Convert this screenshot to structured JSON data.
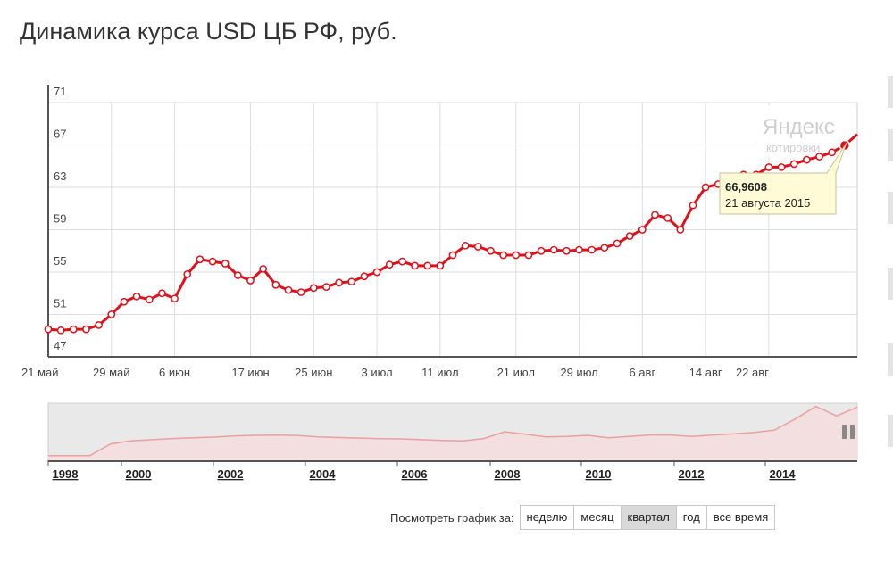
{
  "title": "Динамика курса USD ЦБ РФ, руб.",
  "chart_data": {
    "type": "line",
    "ylim": [
      47,
      71
    ],
    "y_ticks": [
      "71",
      "67",
      "63",
      "59",
      "55",
      "51",
      "47"
    ],
    "x_labels": [
      "21 май",
      "29 май",
      "6 июн",
      "17 июн",
      "25 июн",
      "3 июл",
      "11 июл",
      "21 июл",
      "29 июл",
      "6 авг",
      "14 авг",
      "22 авг"
    ],
    "x_label_index": [
      0,
      5,
      10,
      16,
      21,
      26,
      31,
      37,
      42,
      47,
      52,
      57
    ],
    "values": [
      49.6,
      49.5,
      49.6,
      49.6,
      50.0,
      51.0,
      52.2,
      52.7,
      52.4,
      53.0,
      52.5,
      54.8,
      56.2,
      56.0,
      55.8,
      54.7,
      54.2,
      55.3,
      53.8,
      53.3,
      53.1,
      53.5,
      53.6,
      54.0,
      54.1,
      54.6,
      55.0,
      55.7,
      56.0,
      55.6,
      55.6,
      55.6,
      56.6,
      57.5,
      57.4,
      57.0,
      56.6,
      56.6,
      56.6,
      57.0,
      57.1,
      57.0,
      57.1,
      57.1,
      57.3,
      57.7,
      58.4,
      59.0,
      60.4,
      60.1,
      59.0,
      61.3,
      63.0,
      63.3,
      63.3,
      64.2,
      64.2,
      64.9,
      64.9,
      65.2,
      65.6,
      65.9,
      66.3,
      66.96,
      68.0
    ],
    "grid": true,
    "tooltip": {
      "value": "66,9608",
      "date": "21 августа 2015"
    },
    "watermark": {
      "line1": "Яндекс",
      "line2": "котировки"
    }
  },
  "overview": {
    "years": [
      "1998",
      "2000",
      "2002",
      "2004",
      "2006",
      "2008",
      "2010",
      "2012",
      "2014"
    ],
    "series": [
      5.9,
      5.9,
      6.0,
      20.6,
      24.6,
      26.0,
      27.5,
      28.4,
      29.3,
      30.8,
      31.5,
      31.8,
      31.4,
      29.5,
      28.7,
      28.0,
      27.2,
      27.0,
      26.0,
      25.0,
      24.5,
      27.5,
      36.0,
      33.0,
      29.6,
      30.0,
      31.5,
      28.5,
      30.0,
      32.0,
      32.0,
      30.0,
      31.8,
      33.3,
      35.0,
      38.0,
      52.0,
      68.0,
      56.0,
      67.0
    ]
  },
  "period": {
    "label": "Посмотреть график за:",
    "buttons": [
      "неделю",
      "месяц",
      "квартал",
      "год",
      "все время"
    ],
    "active": "квартал"
  },
  "colors": {
    "line": "#e0101a",
    "grid": "#dddddd",
    "overview_fill": "#f3dfdf",
    "overview_line": "#e8a0a0"
  }
}
